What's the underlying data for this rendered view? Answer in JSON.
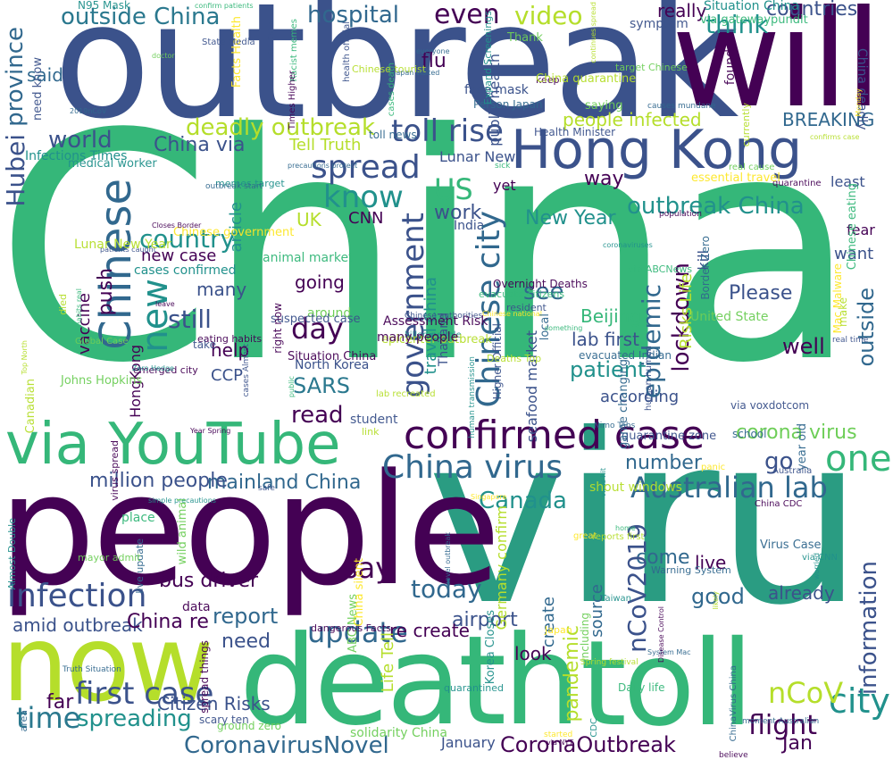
{
  "palette": {
    "dark_purple": "#440154",
    "indigo": "#3b528b",
    "blue": "#31688e",
    "teal": "#21918c",
    "green": "#35b779",
    "light_green": "#6ece58",
    "yellow_green": "#b5de2b",
    "yellow": "#fde725"
  },
  "words": {
    "china": "China",
    "viru": "viru",
    "outbreak": "outbreak",
    "will": "will",
    "people": "people",
    "death": "death",
    "toll": "toll",
    "now": "now",
    "hong_kong": "Hong Kong",
    "via_youtube": "via YouTube",
    "confirmed_case": "confirmed case",
    "china_virus": "China virus",
    "australian_lab": "Australian lab",
    "hubei": "Hubei",
    "province": "province",
    "chinese": "Chinese",
    "new": "new",
    "outside_china": "outside China",
    "hospital": "hospital",
    "even": "even",
    "video": "video",
    "think": "think",
    "countries": "countries",
    "deadly_outbreak": "deadly outbreak",
    "toll_rise": "toll rise",
    "world": "world",
    "spread": "spread",
    "know": "know",
    "us": "US",
    "country": "country",
    "still": "still",
    "day": "day",
    "sars": "SARS",
    "read": "read",
    "government": "government",
    "chinese_city": "Chinese city",
    "epidemic": "epidemic",
    "outbreak_china": "outbreak China",
    "lockdown": "lockdown",
    "see": "see",
    "patient": "patient",
    "lab_first": "lab first",
    "beijing": "Beijing",
    "one": "one",
    "infection": "infection",
    "say": "say",
    "today": "today",
    "report": "report",
    "update": "update",
    "first_case": "first case",
    "spreading": "spreading",
    "time": "time",
    "coronavirusnovel": "CoronavirusNovel",
    "coronaoutbreak": "CoronaOutbreak",
    "city": "city",
    "ncov": "nCoV",
    "information": "information",
    "flight": "flight",
    "canada": "Canada",
    "ncov2019": "nCoV2019",
    "mainland_china": "mainland China",
    "million_people": "million people",
    "corona_virus": "corona virus",
    "number": "number",
    "come": "come",
    "good": "good",
    "live": "live",
    "already": "already",
    "go": "go",
    "bus_driver": "bus driver",
    "amid_outbreak": "amid outbreak",
    "china_re": "China re",
    "need": "need",
    "far": "far",
    "citizen_risks": "Citizen Risks",
    "jan": "Jan",
    "january": "January",
    "look": "look",
    "airport": "airport",
    "re_create": "re create",
    "pandemic": "pandemic",
    "source": "source",
    "create": "create",
    "life_tell": "Life Tell",
    "well": "well",
    "please": "Please",
    "outside": "outside",
    "risks_life": "Risks Life",
    "breaking": "BREAKING",
    "people_infected": "people infected",
    "tell_truth": "Tell Truth",
    "china_via": "China via",
    "infections_times": "Infections Times",
    "lunar_new": "Lunar New",
    "new_year": "New Year",
    "way": "way",
    "work": "work",
    "uk": "UK",
    "cnn": "CNN",
    "vaccine": "vaccine",
    "push": "push",
    "many": "many",
    "help": "help",
    "going": "going",
    "ccp": "CCP",
    "according": "according",
    "said": "said",
    "flu": "flu",
    "really": "really",
    "video_small": "article",
    "situation_china": "Situation China",
    "face_mask": "face mask",
    "new_case": "new case",
    "cases_confirmed": "cases confirmed",
    "hongkong": "HongKong",
    "around": "around",
    "kill": "kill",
    "fear": "fear",
    "want": "want",
    "least": "least",
    "public_health": "public health",
    "yet": "yet",
    "india": "India",
    "thailand": "Thailand",
    "travel_china": "travel China",
    "seafood_market": "seafood market",
    "north_korea": "North Korea",
    "germany_confirm": "Germany confirm",
    "china_deadly": "China deadly",
    "person": "person"
  },
  "small_words": [
    "eating habits",
    "Chinese national",
    "Johns Hopkins",
    "Higher Official",
    "Monday",
    "student",
    "real time",
    "live update",
    "quarantine",
    "resident",
    "take",
    "virus hit",
    "killed people",
    "memes target",
    "System Mac",
    "shout windows",
    "precautions protect",
    "ground zero",
    "cases death",
    "Deaths Top",
    "Facts Health",
    "including",
    "need know",
    "currently",
    "everyone",
    "causes mundane",
    "habits real",
    "Almost Double",
    "Virus Case",
    "Truth Situation",
    "visit China",
    "quarantined",
    "China CDC",
    "solidarity China",
    "Taiwan",
    "Japan",
    "Singapore",
    "epicenter outbreak",
    "Situation China",
    "Health Minister",
    "area",
    "simple precautions",
    "year old",
    "suspected case",
    "emerged city",
    "Racist memes",
    "Korea Closes",
    "health official",
    "Canadian",
    "human human",
    "Mac Malware",
    "medical worker",
    "Chinese eating",
    "Australia",
    "Person Japan",
    "animal market",
    "dangerous Facts",
    "evacuate citizens",
    "worried",
    "Chinese tourist",
    "State Media",
    "panic",
    "Zero Hedge",
    "sick",
    "N95 Mask",
    "keep",
    "CDC",
    "believe",
    "via gatewaypundit",
    "Overnight Deaths",
    "place",
    "patients caught",
    "human transmission",
    "2019nCoV",
    "Times Higher",
    "lab recreated",
    "evacuated Indian",
    "local",
    "Assessment Risk",
    "wild animal",
    "died",
    "coronaviruses",
    "Expand Screenings",
    "target Chinese",
    "Chinese government",
    "United State",
    "quarantine zone",
    "Global Case",
    "confirm patients",
    "scary ten",
    "ABC News",
    "Disease Control",
    "Closes Border",
    "Year Spring",
    "Japan visited",
    "home",
    "great",
    "novel outbreak",
    "essential travel",
    "Border Zero",
    "moment Australian",
    "ChinaVirus China",
    "Nimo Tabs",
    "Warning System",
    "Thank",
    "many people",
    "outbreak start",
    "cases Almost",
    "doctor",
    "public",
    "make",
    "via voxdotcom",
    "virus spread",
    "Spring festival",
    "Daily life",
    "reports first",
    "via NYT",
    "population",
    "data",
    "likely",
    "mayor admit",
    "continues spread",
    "right now",
    "via ABCNews",
    "leave",
    "spread things",
    "real cause",
    "found",
    "something",
    "Chinese authorities",
    "China quarantine",
    "started",
    "symptom",
    "school",
    "safe",
    "saying",
    "link",
    "game changing",
    "China silent",
    "toll news",
    "via CNN",
    "confirms case",
    "Top North",
    "Lunar New Year"
  ]
}
